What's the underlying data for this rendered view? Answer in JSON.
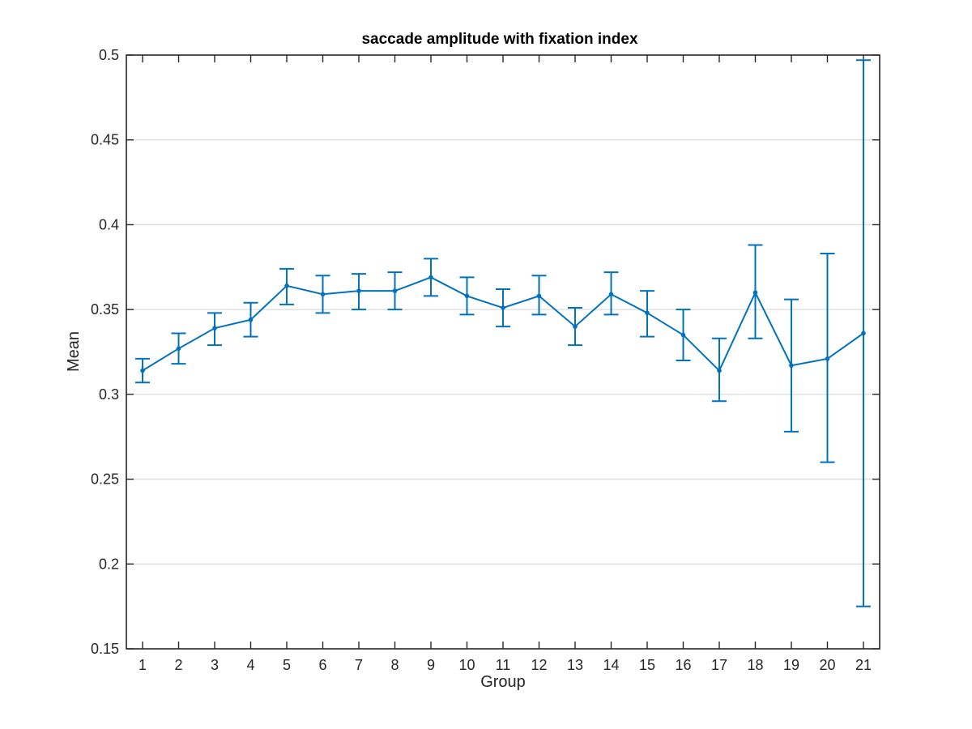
{
  "chart_data": {
    "type": "line",
    "title": "saccade amplitude with fixation index",
    "xlabel": "Group",
    "ylabel": "Mean",
    "xlim": [
      0.55,
      21.45
    ],
    "ylim": [
      0.15,
      0.5
    ],
    "grid": "horizontal",
    "categories": [
      "1",
      "2",
      "3",
      "4",
      "5",
      "6",
      "7",
      "8",
      "9",
      "10",
      "11",
      "12",
      "13",
      "14",
      "15",
      "16",
      "17",
      "18",
      "19",
      "20",
      "21"
    ],
    "y_ticks": [
      0.15,
      0.2,
      0.25,
      0.3,
      0.35,
      0.4,
      0.45,
      0.5
    ],
    "y_tick_labels": [
      "0.15",
      "0.2",
      "0.25",
      "0.3",
      "0.35",
      "0.4",
      "0.45",
      "0.5"
    ],
    "series": [
      {
        "name": "Mean",
        "color": "#0072bd",
        "x": [
          1,
          2,
          3,
          4,
          5,
          6,
          7,
          8,
          9,
          10,
          11,
          12,
          13,
          14,
          15,
          16,
          17,
          18,
          19,
          20,
          21
        ],
        "values": [
          0.314,
          0.327,
          0.339,
          0.344,
          0.364,
          0.359,
          0.361,
          0.361,
          0.369,
          0.358,
          0.351,
          0.358,
          0.34,
          0.359,
          0.348,
          0.335,
          0.314,
          0.36,
          0.317,
          0.321,
          0.336
        ],
        "err_low": [
          0.307,
          0.318,
          0.329,
          0.334,
          0.353,
          0.348,
          0.35,
          0.35,
          0.358,
          0.347,
          0.34,
          0.347,
          0.329,
          0.347,
          0.334,
          0.32,
          0.296,
          0.333,
          0.278,
          0.26,
          0.175
        ],
        "err_high": [
          0.321,
          0.336,
          0.348,
          0.354,
          0.374,
          0.37,
          0.371,
          0.372,
          0.38,
          0.369,
          0.362,
          0.37,
          0.351,
          0.372,
          0.361,
          0.35,
          0.333,
          0.388,
          0.356,
          0.383,
          0.497
        ]
      }
    ]
  }
}
